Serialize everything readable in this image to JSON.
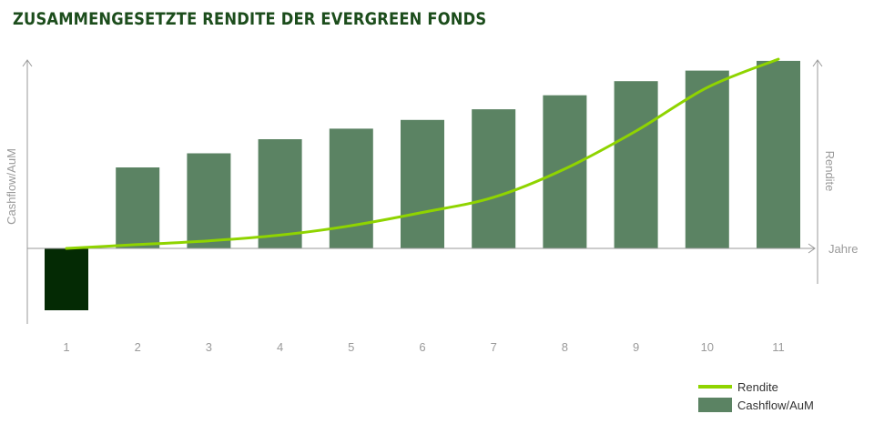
{
  "title": "ZUSAMMENGESETZTE RENDITE DER EVERGREEN FONDS",
  "colors": {
    "title": "#1c4d1c",
    "bar_positive": "#5b8363",
    "bar_negative": "#042a04",
    "line": "#8fd400",
    "axis": "#9a9a9a"
  },
  "chart_data": {
    "type": "bar",
    "title": "ZUSAMMENGESETZTE RENDITE DER EVERGREEN FONDS",
    "categories": [
      "1",
      "2",
      "3",
      "4",
      "5",
      "6",
      "7",
      "8",
      "9",
      "10",
      "11"
    ],
    "ylabel": "Cashflow/AuM",
    "y2label": "Rendite",
    "xlabel": "Jahre",
    "ylim": [
      -70,
      215
    ],
    "y2lim": [
      0,
      100
    ],
    "grid": false,
    "legend_position": "bottom-right",
    "series": [
      {
        "name": "Cashflow/AuM",
        "type": "bar",
        "values": [
          -70,
          92,
          108,
          124,
          136,
          146,
          158,
          174,
          190,
          202,
          213
        ]
      },
      {
        "name": "Rendite",
        "type": "line",
        "axis": "secondary",
        "values": [
          0,
          2,
          4,
          7,
          12,
          19,
          27,
          42,
          62,
          85,
          100
        ]
      }
    ]
  }
}
